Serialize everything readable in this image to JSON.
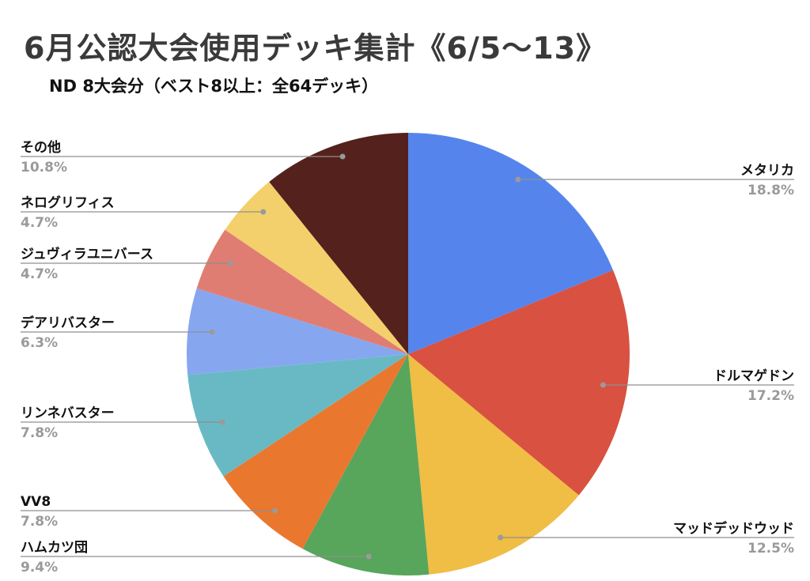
{
  "title": "6月公認大会使用デッキ集計《6/5〜13》",
  "subtitle": "ND 8大会分（ベスト8以上：全64デッキ）",
  "chart_data": {
    "type": "pie",
    "unit": "%",
    "slices": [
      {
        "label": "メタリカ",
        "value": 18.8,
        "value_label": "18.8%",
        "color": "#5585ec"
      },
      {
        "label": "ドルマゲドン",
        "value": 17.2,
        "value_label": "17.2%",
        "color": "#d95141"
      },
      {
        "label": "マッドデッドウッド",
        "value": 12.5,
        "value_label": "12.5%",
        "color": "#f0bd45"
      },
      {
        "label": "ハムカツ団",
        "value": 9.4,
        "value_label": "9.4%",
        "color": "#58a55c"
      },
      {
        "label": "VV8",
        "value": 7.8,
        "value_label": "7.8%",
        "color": "#ea772e"
      },
      {
        "label": "リンネバスター",
        "value": 7.8,
        "value_label": "7.8%",
        "color": "#69b9c4"
      },
      {
        "label": "デアリバスター",
        "value": 6.3,
        "value_label": "6.3%",
        "color": "#86a7f0"
      },
      {
        "label": "ジュヴィラユニバース",
        "value": 4.7,
        "value_label": "4.7%",
        "color": "#e07d73"
      },
      {
        "label": "ネログリフィス",
        "value": 4.7,
        "value_label": "4.7%",
        "color": "#f3d06b"
      },
      {
        "label": "その他",
        "value": 10.8,
        "value_label": "10.8%",
        "color": "#55211c"
      }
    ]
  }
}
